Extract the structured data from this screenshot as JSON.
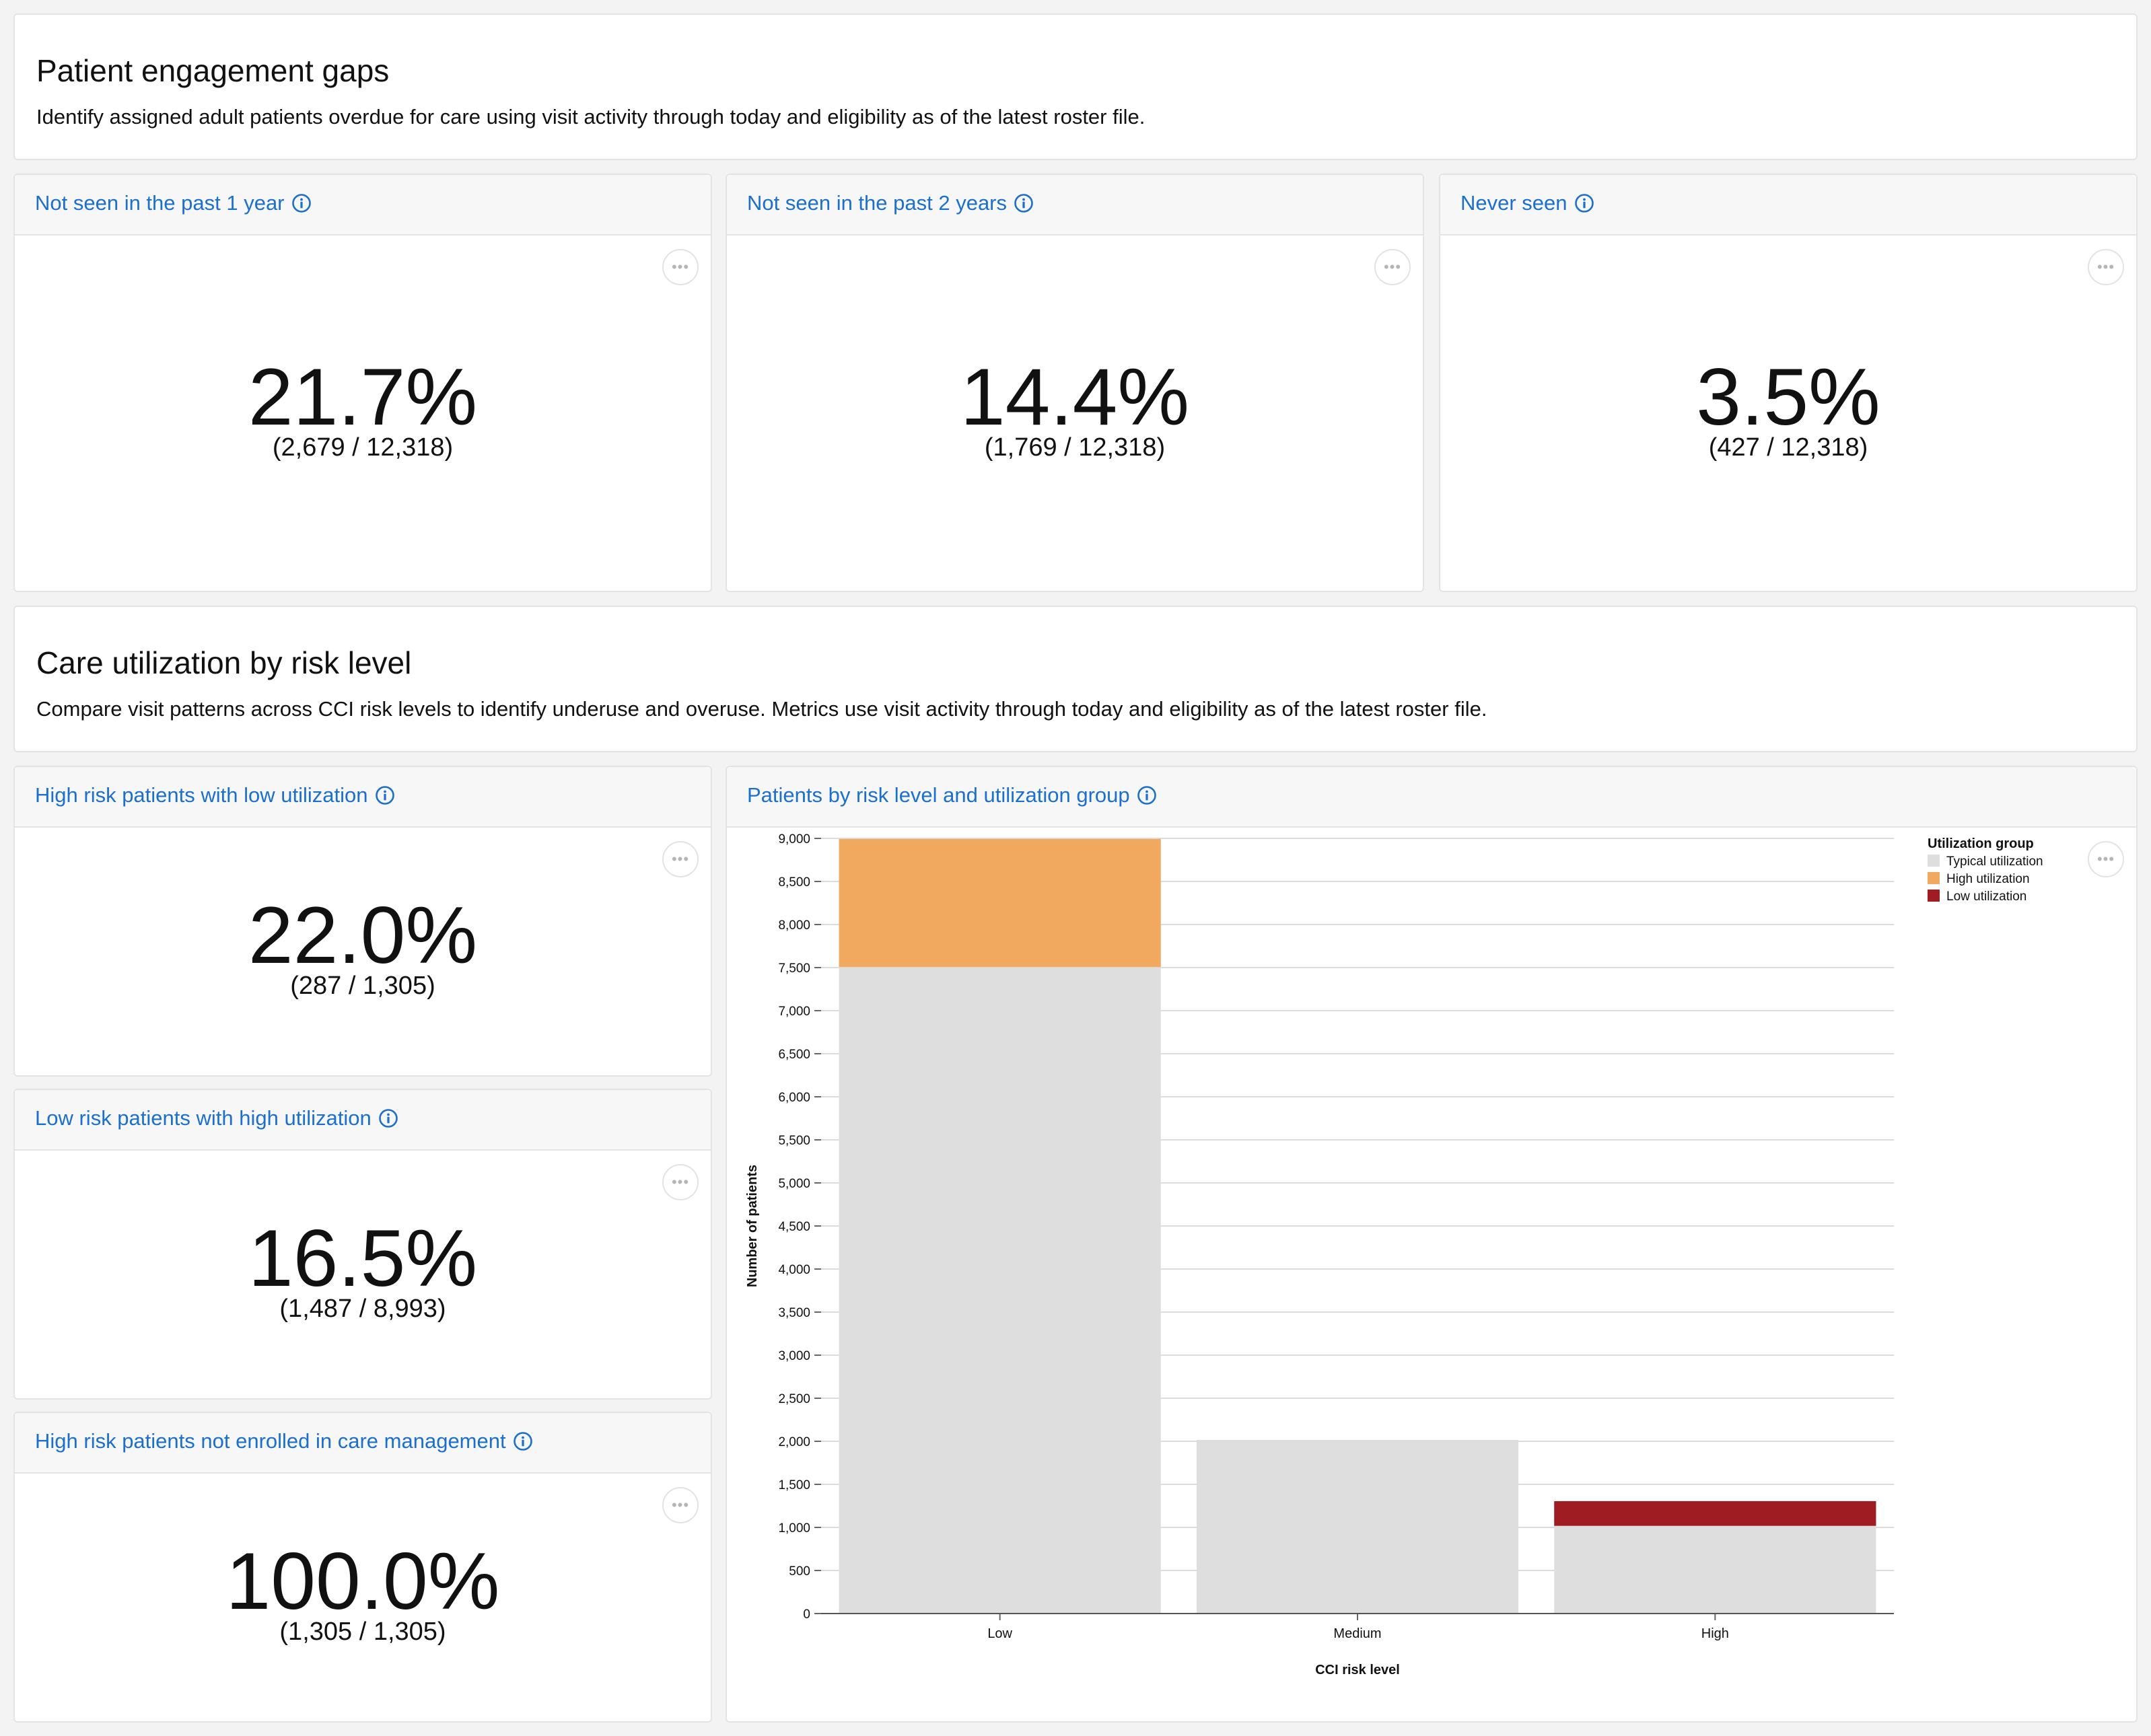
{
  "engagement": {
    "title": "Patient engagement gaps",
    "description": "Identify assigned adult patients overdue for care using visit activity through today and eligibility as of the latest roster file."
  },
  "engagement_cards": [
    {
      "title": "Not seen in the past 1 year",
      "value": "21.7%",
      "detail": "(2,679 / 12,318)"
    },
    {
      "title": "Not seen in the past 2 years",
      "value": "14.4%",
      "detail": "(1,769 / 12,318)"
    },
    {
      "title": "Never seen",
      "value": "3.5%",
      "detail": "(427 / 12,318)"
    }
  ],
  "utilization": {
    "title": "Care utilization by risk level",
    "description": "Compare visit patterns across CCI risk levels to identify underuse and overuse. Metrics use visit activity through today and eligibility as of the latest roster file."
  },
  "utilization_cards": [
    {
      "title": "High risk patients with low utilization",
      "value": "22.0%",
      "detail": "(287 / 1,305)"
    },
    {
      "title": "Low risk patients with high utilization",
      "value": "16.5%",
      "detail": "(1,487 / 8,993)"
    },
    {
      "title": "High risk patients not enrolled in care management",
      "value": "100.0%",
      "detail": "(1,305 / 1,305)"
    }
  ],
  "chart_panel": {
    "title": "Patients by risk level and utilization group"
  },
  "icons": {
    "info": "info-circle-icon",
    "more": "more-horizontal-icon"
  },
  "colors": {
    "link": "#1b6fcf",
    "typical": "#dedede",
    "high": "#f0a95e",
    "low": "#9e1c22"
  },
  "chart_data": {
    "type": "bar",
    "stacked": true,
    "categories": [
      "Low",
      "Medium",
      "High"
    ],
    "series": [
      {
        "name": "Typical utilization",
        "color": "#dedede",
        "values": [
          7506,
          2016,
          1018
        ]
      },
      {
        "name": "High utilization",
        "color": "#f0a95e",
        "values": [
          1487,
          0,
          0
        ]
      },
      {
        "name": "Low utilization",
        "color": "#9e1c22",
        "values": [
          0,
          0,
          287
        ]
      }
    ],
    "xlabel": "CCI risk level",
    "ylabel": "Number of patients",
    "ylim": [
      0,
      9000
    ],
    "yticks": [
      0,
      500,
      1000,
      1500,
      2000,
      2500,
      3000,
      3500,
      4000,
      4500,
      5000,
      5500,
      6000,
      6500,
      7000,
      7500,
      8000,
      8500,
      9000
    ],
    "ytick_labels": [
      "0",
      "500",
      "1,000",
      "1,500",
      "2,000",
      "2,500",
      "3,000",
      "3,500",
      "4,000",
      "4,500",
      "5,000",
      "5,500",
      "6,000",
      "6,500",
      "7,000",
      "7,500",
      "8,000",
      "8,500",
      "9,000"
    ],
    "legend_title": "Utilization group",
    "legend_position": "top-right",
    "grid": true
  }
}
